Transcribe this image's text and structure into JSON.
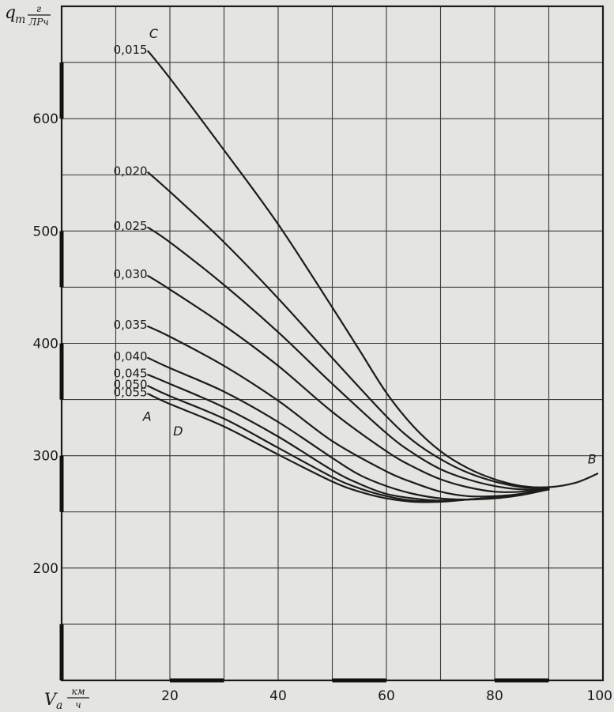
{
  "chart_data": {
    "type": "line",
    "title": "",
    "xlabel": "V",
    "xlabel_sub": "a",
    "xunit_num": "км",
    "xunit_den": "ч",
    "ylabel": "q",
    "ylabel_sub": "т",
    "yunit_num": "г",
    "yunit_den": "ЛРч",
    "xlim": [
      0,
      100
    ],
    "ylim": [
      100,
      700
    ],
    "grid": true,
    "legend": "none",
    "x_ticks": [
      {
        "value": 20,
        "label": "20"
      },
      {
        "value": 40,
        "label": "40"
      },
      {
        "value": 60,
        "label": "60"
      },
      {
        "value": 80,
        "label": "80"
      },
      {
        "value": 100,
        "label": "100"
      }
    ],
    "y_ticks": [
      {
        "value": 200,
        "label": "200"
      },
      {
        "value": 300,
        "label": "300"
      },
      {
        "value": 400,
        "label": "400"
      },
      {
        "value": 500,
        "label": "500"
      },
      {
        "value": 600,
        "label": "600"
      }
    ],
    "series": [
      {
        "name": "0,015",
        "points": [
          [
            16,
            660
          ],
          [
            20,
            636
          ],
          [
            30,
            572
          ],
          [
            40,
            506
          ],
          [
            50,
            432
          ],
          [
            55,
            394
          ],
          [
            60,
            356
          ],
          [
            65,
            326
          ],
          [
            70,
            304
          ],
          [
            75,
            289
          ],
          [
            80,
            279
          ],
          [
            85,
            273
          ],
          [
            90,
            272
          ],
          [
            95,
            276
          ],
          [
            99,
            284
          ]
        ]
      },
      {
        "name": "0,020",
        "points": [
          [
            16,
            552
          ],
          [
            20,
            535
          ],
          [
            30,
            490
          ],
          [
            40,
            440
          ],
          [
            50,
            387
          ],
          [
            60,
            335
          ],
          [
            65,
            313
          ],
          [
            70,
            297
          ],
          [
            75,
            285
          ],
          [
            80,
            277
          ],
          [
            85,
            272
          ],
          [
            90,
            272
          ]
        ]
      },
      {
        "name": "0,025",
        "points": [
          [
            16,
            503
          ],
          [
            20,
            490
          ],
          [
            30,
            452
          ],
          [
            40,
            410
          ],
          [
            50,
            364
          ],
          [
            60,
            320
          ],
          [
            65,
            302
          ],
          [
            70,
            288
          ],
          [
            75,
            279
          ],
          [
            80,
            273
          ],
          [
            85,
            270
          ],
          [
            90,
            271
          ]
        ]
      },
      {
        "name": "0,030",
        "points": [
          [
            16,
            460
          ],
          [
            20,
            448
          ],
          [
            30,
            416
          ],
          [
            40,
            380
          ],
          [
            50,
            339
          ],
          [
            60,
            304
          ],
          [
            65,
            290
          ],
          [
            70,
            279
          ],
          [
            75,
            272
          ],
          [
            80,
            268
          ],
          [
            85,
            268
          ],
          [
            90,
            271
          ]
        ]
      },
      {
        "name": "0,035",
        "points": [
          [
            16,
            415
          ],
          [
            20,
            406
          ],
          [
            30,
            380
          ],
          [
            40,
            349
          ],
          [
            50,
            313
          ],
          [
            60,
            286
          ],
          [
            65,
            276
          ],
          [
            70,
            268
          ],
          [
            75,
            264
          ],
          [
            80,
            264
          ],
          [
            85,
            266
          ],
          [
            90,
            270
          ]
        ]
      },
      {
        "name": "0,040",
        "points": [
          [
            16,
            387
          ],
          [
            20,
            378
          ],
          [
            30,
            357
          ],
          [
            40,
            330
          ],
          [
            50,
            298
          ],
          [
            55,
            283
          ],
          [
            60,
            273
          ],
          [
            65,
            266
          ],
          [
            70,
            262
          ],
          [
            75,
            261
          ],
          [
            80,
            262
          ],
          [
            85,
            265
          ],
          [
            90,
            270
          ]
        ]
      },
      {
        "name": "0,045",
        "points": [
          [
            16,
            372
          ],
          [
            20,
            364
          ],
          [
            30,
            343
          ],
          [
            40,
            317
          ],
          [
            50,
            287
          ],
          [
            55,
            275
          ],
          [
            60,
            266
          ],
          [
            65,
            262
          ],
          [
            70,
            260
          ],
          [
            75,
            261
          ],
          [
            80,
            263
          ],
          [
            85,
            266
          ],
          [
            90,
            270
          ]
        ]
      },
      {
        "name": "0,050",
        "points": [
          [
            16,
            362
          ],
          [
            20,
            353
          ],
          [
            30,
            333
          ],
          [
            40,
            307
          ],
          [
            50,
            281
          ],
          [
            55,
            271
          ],
          [
            60,
            264
          ],
          [
            65,
            260
          ],
          [
            70,
            260
          ],
          [
            75,
            261
          ],
          [
            80,
            263
          ],
          [
            85,
            266
          ],
          [
            90,
            270
          ]
        ]
      },
      {
        "name": "0,055",
        "points": [
          [
            16,
            355
          ],
          [
            20,
            346
          ],
          [
            30,
            326
          ],
          [
            40,
            301
          ],
          [
            50,
            277
          ],
          [
            55,
            268
          ],
          [
            60,
            262
          ],
          [
            65,
            259
          ],
          [
            70,
            259
          ],
          [
            75,
            261
          ],
          [
            80,
            263
          ],
          [
            85,
            266
          ],
          [
            90,
            270
          ]
        ]
      }
    ],
    "point_labels": [
      {
        "text": "C",
        "x": 17,
        "y": 672
      },
      {
        "text": "A",
        "x": 15.8,
        "y": 331
      },
      {
        "text": "D",
        "x": 21.5,
        "y": 318
      },
      {
        "text": "B",
        "x": 98,
        "y": 293
      }
    ]
  }
}
